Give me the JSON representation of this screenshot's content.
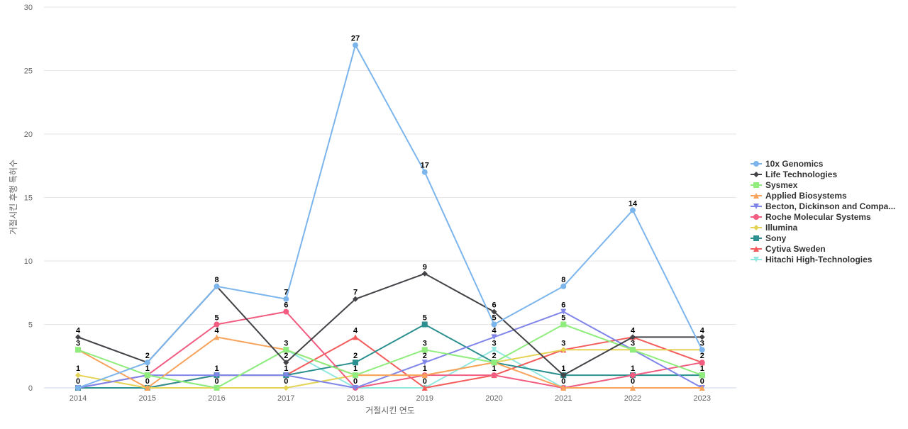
{
  "chart_data": {
    "type": "line",
    "title": "",
    "xlabel": "거절시킨 연도",
    "ylabel": "거절시킨 후행 특허수",
    "categories": [
      "2014",
      "2015",
      "2016",
      "2017",
      "2018",
      "2019",
      "2020",
      "2021",
      "2022",
      "2023"
    ],
    "ylim": [
      0,
      30
    ],
    "yticks": [
      0,
      5,
      10,
      15,
      20,
      25,
      30
    ],
    "grid": true,
    "legend_position": "right",
    "series": [
      {
        "name": "10x Genomics",
        "color": "#7cb5ec",
        "marker": "circle",
        "values": [
          0,
          2,
          8,
          7,
          27,
          17,
          5,
          8,
          14,
          3
        ]
      },
      {
        "name": "Life Technologies",
        "color": "#434348",
        "marker": "diamond",
        "values": [
          4,
          2,
          8,
          2,
          7,
          9,
          6,
          1,
          4,
          4
        ]
      },
      {
        "name": "Sysmex",
        "color": "#90ed7d",
        "marker": "square",
        "values": [
          3,
          1,
          0,
          3,
          1,
          3,
          2,
          5,
          3,
          1
        ]
      },
      {
        "name": "Applied Biosystems",
        "color": "#f7a35c",
        "marker": "triangle",
        "values": [
          3,
          0,
          4,
          3,
          1,
          1,
          2,
          0,
          0,
          0
        ]
      },
      {
        "name": "Becton, Dickinson and Compa...",
        "color": "#8085e9",
        "marker": "triangle-down",
        "values": [
          0,
          1,
          1,
          1,
          0,
          2,
          4,
          6,
          3,
          0
        ]
      },
      {
        "name": "Roche Molecular Systems",
        "color": "#f15c80",
        "marker": "circle",
        "values": [
          0,
          1,
          5,
          6,
          0,
          1,
          1,
          0,
          1,
          2
        ]
      },
      {
        "name": "Illumina",
        "color": "#e4d354",
        "marker": "diamond",
        "values": [
          1,
          0,
          0,
          0,
          1,
          1,
          2,
          3,
          3,
          3
        ]
      },
      {
        "name": "Sony",
        "color": "#2b908f",
        "marker": "square",
        "values": [
          0,
          0,
          1,
          1,
          2,
          5,
          2,
          1,
          1,
          1
        ]
      },
      {
        "name": "Cytiva Sweden",
        "color": "#f45b5b",
        "marker": "triangle",
        "values": [
          0,
          0,
          1,
          1,
          4,
          0,
          1,
          3,
          4,
          2
        ]
      },
      {
        "name": "Hitachi High-Technologies",
        "color": "#91e8e1",
        "marker": "triangle-down",
        "values": [
          0,
          1,
          0,
          3,
          0,
          0,
          3,
          0,
          1,
          1
        ]
      }
    ],
    "data_labels": [
      {
        "x": "2014",
        "values": [
          4,
          3,
          1,
          0
        ]
      },
      {
        "x": "2015",
        "values": [
          2,
          1,
          0
        ]
      },
      {
        "x": "2016",
        "values": [
          8,
          5,
          4,
          1,
          0
        ]
      },
      {
        "x": "2017",
        "values": [
          7,
          6,
          3,
          2,
          1,
          0
        ]
      },
      {
        "x": "2018",
        "values": [
          27,
          7,
          4,
          2,
          1,
          0
        ]
      },
      {
        "x": "2019",
        "values": [
          17,
          9,
          5,
          3,
          2,
          1,
          0
        ]
      },
      {
        "x": "2020",
        "values": [
          6,
          5,
          4,
          3,
          2,
          1
        ]
      },
      {
        "x": "2021",
        "values": [
          8,
          6,
          5,
          3,
          1,
          0
        ]
      },
      {
        "x": "2022",
        "values": [
          14,
          4,
          3,
          1,
          0
        ]
      },
      {
        "x": "2023",
        "values": [
          4,
          3,
          2,
          1,
          0
        ]
      }
    ]
  }
}
